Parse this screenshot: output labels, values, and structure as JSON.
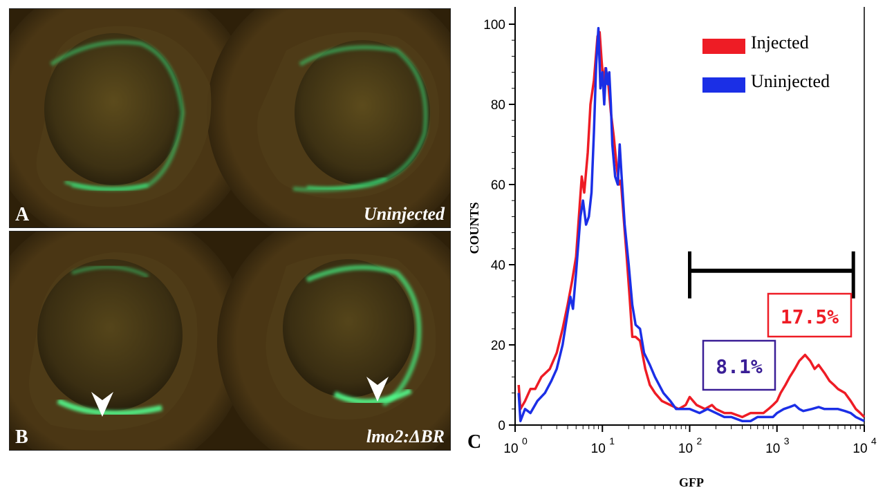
{
  "panels": {
    "a": {
      "letter": "A",
      "label": "Uninjected"
    },
    "b": {
      "letter": "B",
      "label": "lmo2:ΔBR"
    }
  },
  "colors": {
    "injected": "#ee1c25",
    "uninjected": "#1b2fe6",
    "percent_uninjected_box": "#3a1e96"
  },
  "chart_letter": "C",
  "chart_data": {
    "type": "line",
    "title": "",
    "xlabel": "GFP",
    "ylabel": "COUNTS",
    "xscale": "log",
    "xlim": [
      1,
      10000
    ],
    "ylim": [
      0,
      100
    ],
    "yticks": [
      0,
      20,
      40,
      60,
      80,
      100
    ],
    "xticks": [
      {
        "value": 1,
        "base": "10",
        "exp": "0"
      },
      {
        "value": 10,
        "base": "10",
        "exp": "1"
      },
      {
        "value": 100,
        "base": "10",
        "exp": "2"
      },
      {
        "value": 1000,
        "base": "10",
        "exp": "3"
      },
      {
        "value": 10000,
        "base": "10",
        "exp": "4"
      }
    ],
    "legend": {
      "placement": "top-right"
    },
    "gate": {
      "x_start": 100,
      "x_end": 7500,
      "y": 38.5
    },
    "series": [
      {
        "name": "Injected",
        "color": "#ee1c25",
        "gate_percent": "17.5%",
        "points": [
          [
            1.1,
            10
          ],
          [
            1.15,
            4
          ],
          [
            1.3,
            6
          ],
          [
            1.5,
            9
          ],
          [
            1.7,
            9
          ],
          [
            2.0,
            12
          ],
          [
            2.5,
            14
          ],
          [
            3.0,
            18
          ],
          [
            3.5,
            24
          ],
          [
            4.0,
            30
          ],
          [
            4.5,
            36
          ],
          [
            5.0,
            42
          ],
          [
            5.5,
            55
          ],
          [
            5.8,
            62
          ],
          [
            6.2,
            58
          ],
          [
            6.8,
            68
          ],
          [
            7.3,
            80
          ],
          [
            8.0,
            86
          ],
          [
            8.8,
            97
          ],
          [
            9.3,
            98
          ],
          [
            9.8,
            91
          ],
          [
            10.3,
            85
          ],
          [
            10.8,
            89
          ],
          [
            11.5,
            87
          ],
          [
            12.5,
            78
          ],
          [
            13.5,
            72
          ],
          [
            14.5,
            65
          ],
          [
            15.5,
            60
          ],
          [
            16.3,
            61
          ],
          [
            17.5,
            52
          ],
          [
            19,
            42
          ],
          [
            20.5,
            32
          ],
          [
            22,
            22
          ],
          [
            24,
            22
          ],
          [
            27,
            21
          ],
          [
            31,
            14
          ],
          [
            35,
            10
          ],
          [
            40,
            8
          ],
          [
            48,
            6
          ],
          [
            60,
            5
          ],
          [
            75,
            4
          ],
          [
            90,
            5
          ],
          [
            100,
            7
          ],
          [
            120,
            5
          ],
          [
            150,
            4
          ],
          [
            180,
            5
          ],
          [
            200,
            4
          ],
          [
            250,
            3
          ],
          [
            300,
            3
          ],
          [
            400,
            2
          ],
          [
            500,
            3
          ],
          [
            600,
            3
          ],
          [
            700,
            3
          ],
          [
            800,
            4
          ],
          [
            900,
            5
          ],
          [
            1000,
            6
          ],
          [
            1100,
            8
          ],
          [
            1250,
            10
          ],
          [
            1400,
            12
          ],
          [
            1600,
            14
          ],
          [
            1800,
            16
          ],
          [
            2100,
            17.5
          ],
          [
            2400,
            16
          ],
          [
            2700,
            14
          ],
          [
            3000,
            15
          ],
          [
            3500,
            13
          ],
          [
            4000,
            11
          ],
          [
            4500,
            10
          ],
          [
            5000,
            9
          ],
          [
            6000,
            8
          ],
          [
            7000,
            6
          ],
          [
            8000,
            4
          ],
          [
            9000,
            3
          ],
          [
            10000,
            2
          ]
        ]
      },
      {
        "name": "Uninjected",
        "color": "#1b2fe6",
        "gate_percent": "8.1%",
        "points": [
          [
            1.1,
            8
          ],
          [
            1.15,
            1
          ],
          [
            1.3,
            4
          ],
          [
            1.5,
            3
          ],
          [
            1.8,
            6
          ],
          [
            2.2,
            8
          ],
          [
            2.6,
            11
          ],
          [
            3.0,
            14
          ],
          [
            3.5,
            20
          ],
          [
            4.0,
            28
          ],
          [
            4.3,
            32
          ],
          [
            4.6,
            29
          ],
          [
            5.0,
            38
          ],
          [
            5.6,
            52
          ],
          [
            6.0,
            56
          ],
          [
            6.5,
            50
          ],
          [
            7.0,
            52
          ],
          [
            7.5,
            58
          ],
          [
            8.0,
            73
          ],
          [
            8.5,
            90
          ],
          [
            9.0,
            99
          ],
          [
            9.5,
            84
          ],
          [
            10,
            88
          ],
          [
            10.5,
            80
          ],
          [
            11,
            89
          ],
          [
            11.5,
            85
          ],
          [
            12,
            88
          ],
          [
            12.5,
            80
          ],
          [
            13,
            70
          ],
          [
            14,
            62
          ],
          [
            15,
            60
          ],
          [
            15.8,
            70
          ],
          [
            16.5,
            63
          ],
          [
            18,
            50
          ],
          [
            20,
            40
          ],
          [
            22,
            30
          ],
          [
            24,
            25
          ],
          [
            27,
            24
          ],
          [
            30,
            18
          ],
          [
            35,
            15
          ],
          [
            40,
            12
          ],
          [
            50,
            8
          ],
          [
            60,
            6
          ],
          [
            70,
            4
          ],
          [
            80,
            4
          ],
          [
            100,
            4
          ],
          [
            130,
            3
          ],
          [
            160,
            4
          ],
          [
            200,
            3
          ],
          [
            250,
            2
          ],
          [
            300,
            2
          ],
          [
            400,
            1
          ],
          [
            500,
            1
          ],
          [
            600,
            2
          ],
          [
            700,
            2
          ],
          [
            800,
            2
          ],
          [
            900,
            2
          ],
          [
            1000,
            3
          ],
          [
            1200,
            4
          ],
          [
            1400,
            4.5
          ],
          [
            1600,
            5
          ],
          [
            1800,
            4
          ],
          [
            2000,
            3.5
          ],
          [
            2500,
            4
          ],
          [
            3000,
            4.5
          ],
          [
            3500,
            4
          ],
          [
            4000,
            4
          ],
          [
            5000,
            4
          ],
          [
            6000,
            3.5
          ],
          [
            7000,
            3
          ],
          [
            8000,
            2
          ],
          [
            10000,
            1
          ]
        ]
      }
    ]
  }
}
